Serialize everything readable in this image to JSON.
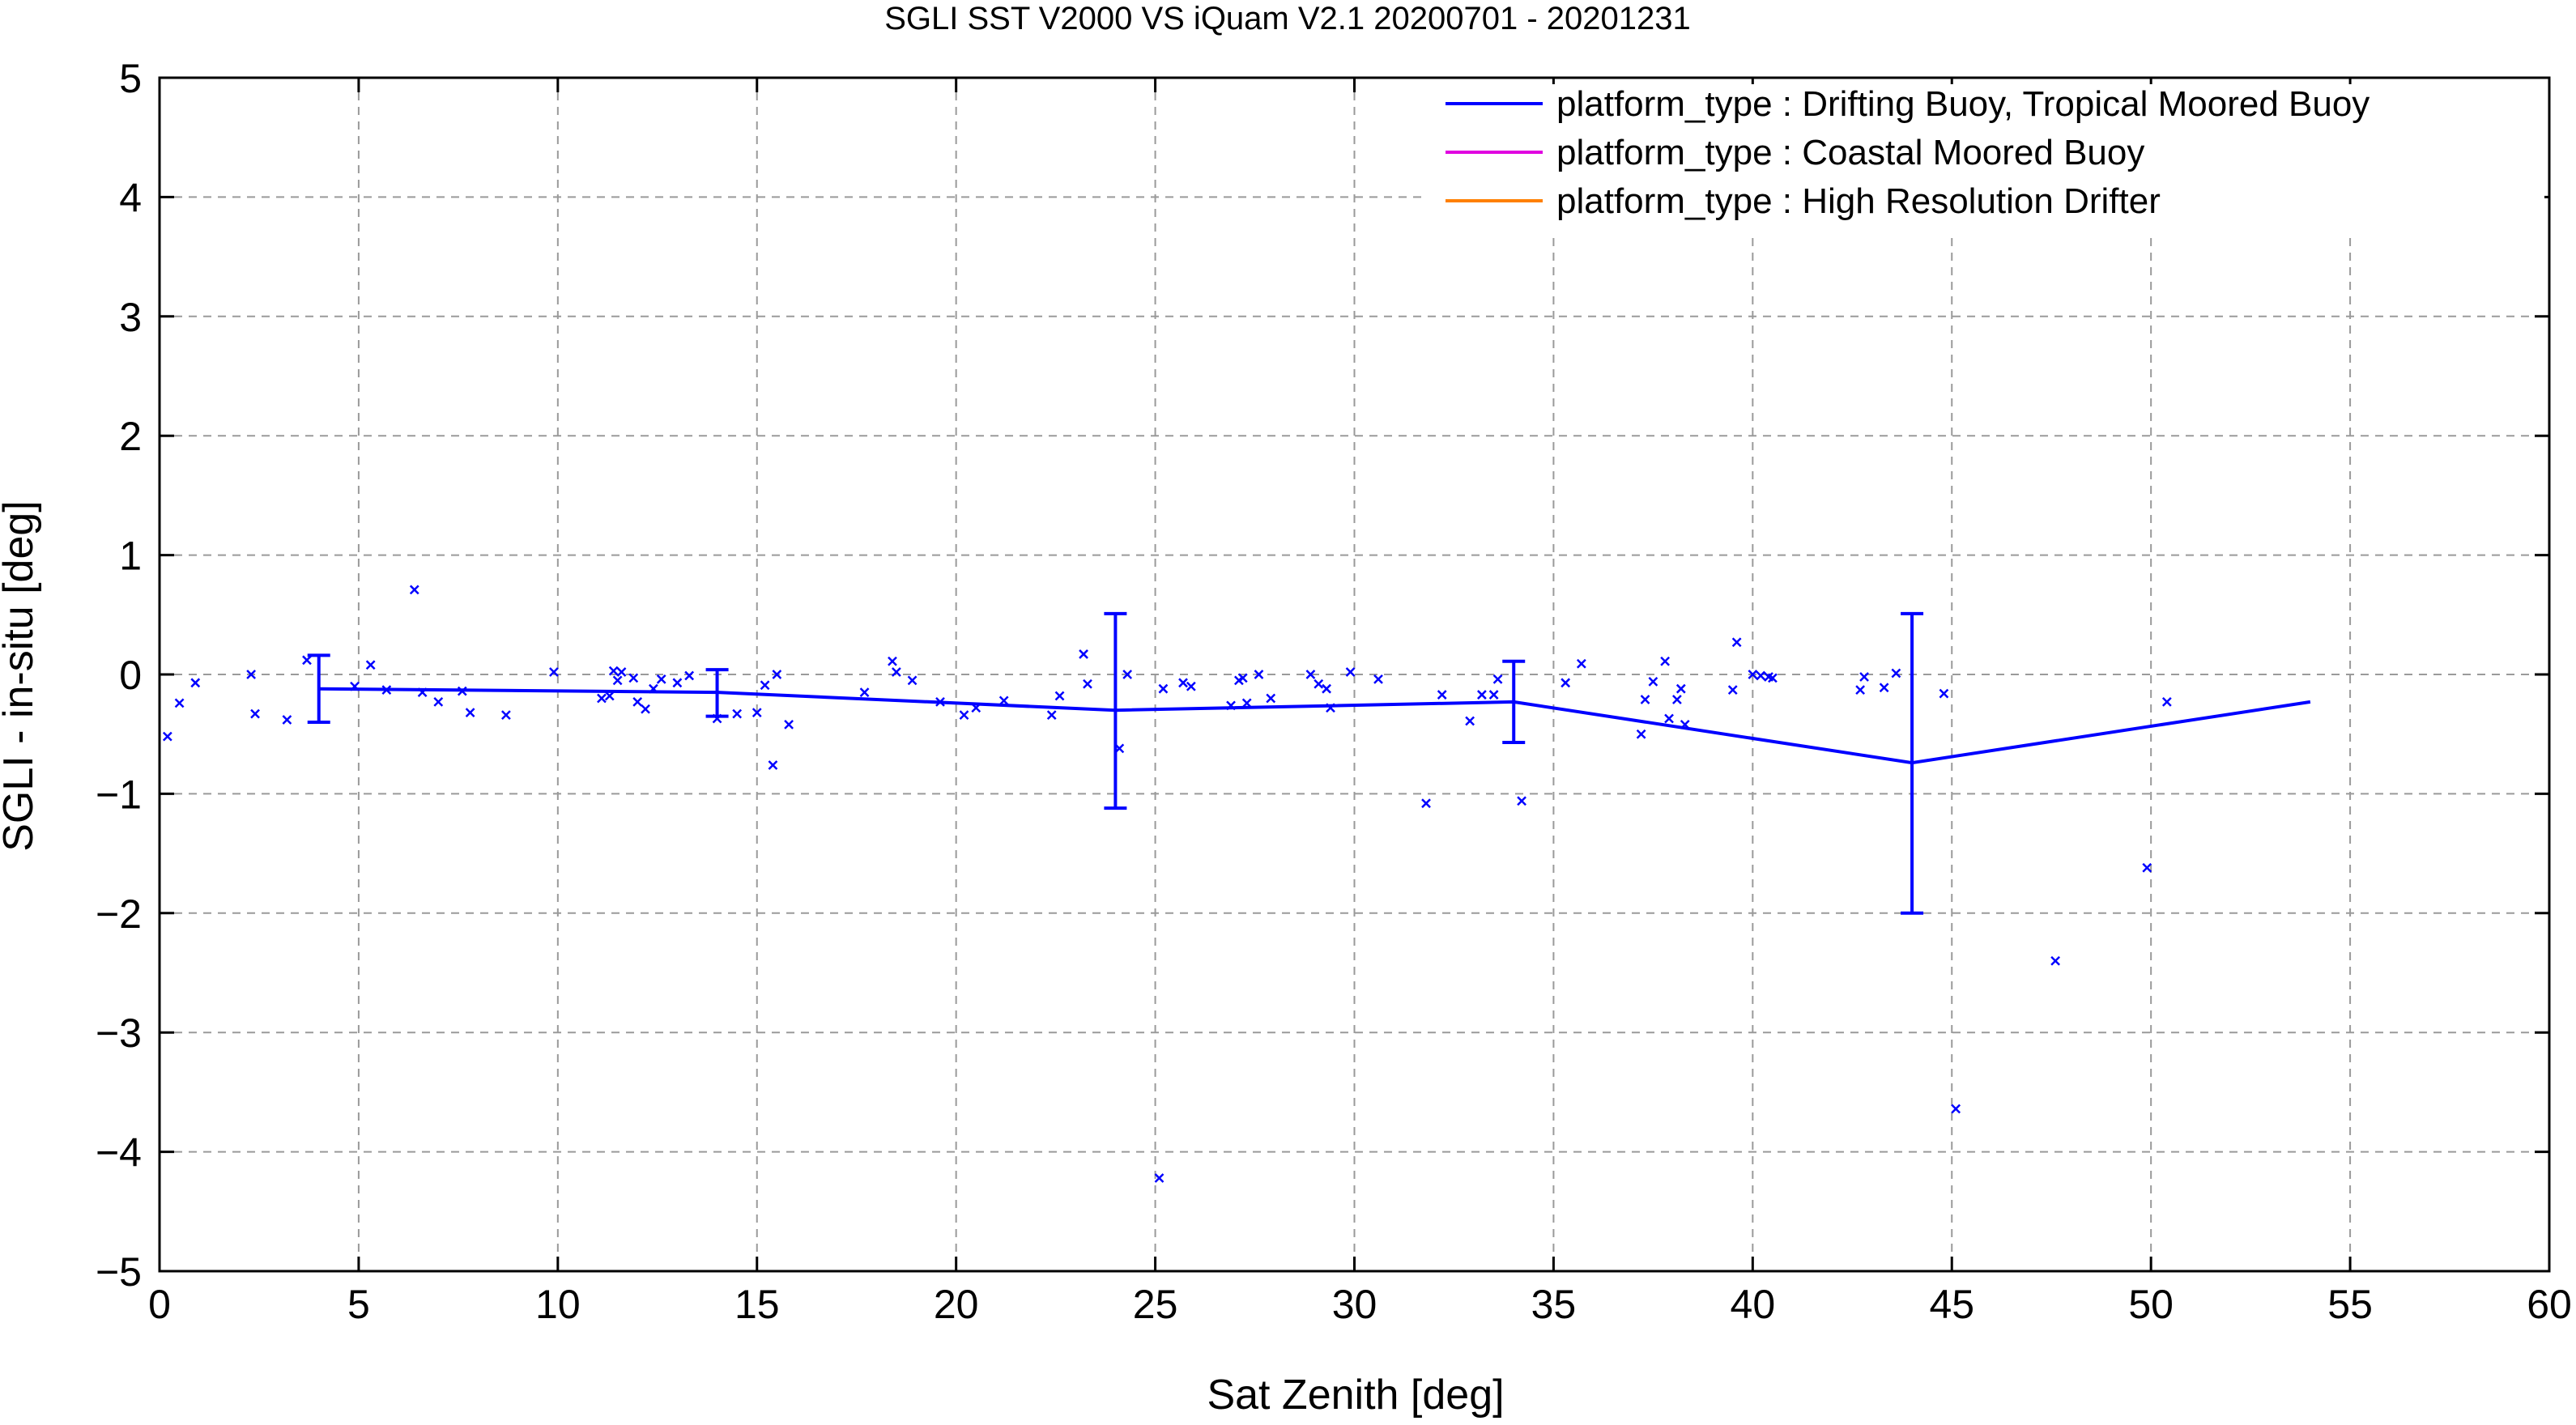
{
  "chart_data": {
    "type": "scatter",
    "title": "SGLI SST V2000 VS iQuam V2.1 20200701 - 20201231",
    "xlabel": "Sat Zenith [deg]",
    "ylabel": "SGLI - in-situ [deg]",
    "xlim": [
      0,
      60
    ],
    "ylim": [
      -5,
      5
    ],
    "xticks": [
      0,
      5,
      10,
      15,
      20,
      25,
      30,
      35,
      40,
      45,
      50,
      55,
      60
    ],
    "yticks": [
      -5,
      -4,
      -3,
      -2,
      -1,
      0,
      1,
      2,
      3,
      4,
      5
    ],
    "xtick_labels": [
      "0",
      "5",
      "10",
      "15",
      "20",
      "25",
      "30",
      "35",
      "40",
      "45",
      "50",
      "55",
      "60"
    ],
    "ytick_labels": [
      "−5",
      "−4",
      "−3",
      "−2",
      "−1",
      "0",
      "1",
      "2",
      "3",
      "4",
      "5"
    ],
    "grid": true,
    "legend_position": "top-right",
    "legend": [
      {
        "label": "platform_type : Drifting Buoy, Tropical Moored Buoy",
        "color": "#0000ff"
      },
      {
        "label": "platform_type : Coastal Moored Buoy",
        "color": "#e000e0"
      },
      {
        "label": "platform_type : High Resolution Drifter",
        "color": "#ff8000"
      }
    ],
    "series": [
      {
        "name": "platform_type : Drifting Buoy, Tropical Moored Buoy",
        "color": "#0000ff",
        "mean_line": {
          "x": [
            4,
            14,
            24,
            34,
            44,
            54
          ],
          "y": [
            -0.12,
            -0.15,
            -0.3,
            -0.23,
            -0.74,
            -0.23
          ],
          "error_low": [
            -0.4,
            -0.35,
            -1.12,
            -0.57,
            -2.0,
            null
          ],
          "error_high": [
            0.16,
            0.04,
            0.51,
            0.11,
            0.51,
            null
          ]
        },
        "points": [
          [
            0.2,
            -0.52
          ],
          [
            0.5,
            -0.24
          ],
          [
            0.9,
            -0.07
          ],
          [
            2.3,
            0.0
          ],
          [
            2.4,
            -0.33
          ],
          [
            3.2,
            -0.38
          ],
          [
            3.7,
            0.12
          ],
          [
            4.9,
            -0.1
          ],
          [
            5.3,
            0.08
          ],
          [
            5.7,
            -0.13
          ],
          [
            6.4,
            0.71
          ],
          [
            6.6,
            -0.15
          ],
          [
            7.0,
            -0.23
          ],
          [
            7.6,
            -0.14
          ],
          [
            7.8,
            -0.32
          ],
          [
            8.7,
            -0.34
          ],
          [
            9.9,
            0.02
          ],
          [
            11.1,
            -0.2
          ],
          [
            11.3,
            -0.18
          ],
          [
            11.4,
            0.03
          ],
          [
            11.5,
            -0.05
          ],
          [
            11.6,
            0.02
          ],
          [
            11.9,
            -0.03
          ],
          [
            12.0,
            -0.23
          ],
          [
            12.2,
            -0.29
          ],
          [
            12.4,
            -0.12
          ],
          [
            12.6,
            -0.04
          ],
          [
            13.0,
            -0.07
          ],
          [
            13.3,
            -0.01
          ],
          [
            14.0,
            -0.37
          ],
          [
            14.5,
            -0.33
          ],
          [
            15.0,
            -0.32
          ],
          [
            15.2,
            -0.09
          ],
          [
            15.4,
            -0.76
          ],
          [
            15.5,
            0.0
          ],
          [
            15.8,
            -0.42
          ],
          [
            17.7,
            -0.15
          ],
          [
            18.4,
            0.11
          ],
          [
            18.5,
            0.02
          ],
          [
            18.9,
            -0.05
          ],
          [
            19.6,
            -0.23
          ],
          [
            20.2,
            -0.34
          ],
          [
            20.5,
            -0.28
          ],
          [
            21.2,
            -0.22
          ],
          [
            22.4,
            -0.34
          ],
          [
            22.6,
            -0.18
          ],
          [
            23.2,
            0.17
          ],
          [
            23.3,
            -0.08
          ],
          [
            24.1,
            -0.62
          ],
          [
            24.3,
            0.0
          ],
          [
            25.1,
            -4.22
          ],
          [
            25.2,
            -0.12
          ],
          [
            25.7,
            -0.07
          ],
          [
            25.9,
            -0.1
          ],
          [
            26.9,
            -0.26
          ],
          [
            27.1,
            -0.05
          ],
          [
            27.2,
            -0.03
          ],
          [
            27.3,
            -0.24
          ],
          [
            27.6,
            0.0
          ],
          [
            27.9,
            -0.2
          ],
          [
            28.9,
            0.0
          ],
          [
            29.1,
            -0.08
          ],
          [
            29.3,
            -0.12
          ],
          [
            29.4,
            -0.28
          ],
          [
            29.9,
            0.02
          ],
          [
            30.6,
            -0.04
          ],
          [
            31.8,
            -1.08
          ],
          [
            32.2,
            -0.17
          ],
          [
            32.9,
            -0.39
          ],
          [
            33.2,
            -0.17
          ],
          [
            33.5,
            -0.17
          ],
          [
            33.6,
            -0.04
          ],
          [
            34.2,
            -1.06
          ],
          [
            35.3,
            -0.07
          ],
          [
            35.7,
            0.09
          ],
          [
            37.2,
            -0.5
          ],
          [
            37.3,
            -0.21
          ],
          [
            37.5,
            -0.06
          ],
          [
            37.8,
            0.11
          ],
          [
            37.9,
            -0.37
          ],
          [
            38.1,
            -0.21
          ],
          [
            38.2,
            -0.12
          ],
          [
            38.3,
            -0.42
          ],
          [
            39.5,
            -0.13
          ],
          [
            39.6,
            0.27
          ],
          [
            40.0,
            0.0
          ],
          [
            40.2,
            -0.01
          ],
          [
            40.4,
            -0.02
          ],
          [
            40.5,
            -0.03
          ],
          [
            42.7,
            -0.13
          ],
          [
            42.8,
            -0.02
          ],
          [
            43.3,
            -0.11
          ],
          [
            43.6,
            0.01
          ],
          [
            44.8,
            -0.16
          ],
          [
            45.1,
            -3.64
          ],
          [
            47.6,
            -2.4
          ],
          [
            49.9,
            -1.62
          ],
          [
            50.4,
            -0.23
          ]
        ]
      }
    ]
  }
}
